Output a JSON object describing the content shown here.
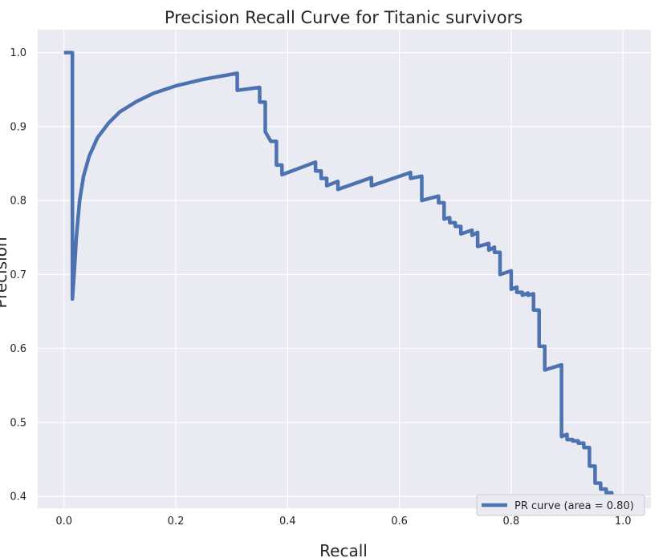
{
  "chart_data": {
    "type": "line",
    "title": "Precision Recall Curve for Titanic survivors",
    "xlabel": "Recall",
    "ylabel": "Precision",
    "xlim": [
      -0.047,
      1.05
    ],
    "ylim": [
      0.384,
      1.031
    ],
    "x_ticks": [
      0.0,
      0.2,
      0.4,
      0.6,
      0.8,
      1.0
    ],
    "x_tick_labels": [
      "0.0",
      "0.2",
      "0.4",
      "0.6",
      "0.8",
      "1.0"
    ],
    "y_ticks": [
      0.4,
      0.5,
      0.6,
      0.7,
      0.8,
      0.9,
      1.0
    ],
    "y_tick_labels": [
      "0.4",
      "0.5",
      "0.6",
      "0.7",
      "0.8",
      "0.9",
      "1.0"
    ],
    "grid": true,
    "legend_position": "lower-right",
    "colors": {
      "plot_background": "#eaeaf2",
      "grid": "#ffffff",
      "line": "#4c72b0",
      "text": "#262626"
    },
    "series": [
      {
        "name": "PR curve (area = 0.80)",
        "x": [
          0.0,
          0.015,
          0.015,
          0.018,
          0.022,
          0.028,
          0.035,
          0.045,
          0.06,
          0.08,
          0.1,
          0.13,
          0.16,
          0.2,
          0.25,
          0.31,
          0.31,
          0.35,
          0.35,
          0.36,
          0.36,
          0.37,
          0.37,
          0.38,
          0.38,
          0.39,
          0.39,
          0.45,
          0.45,
          0.46,
          0.46,
          0.47,
          0.47,
          0.49,
          0.49,
          0.55,
          0.55,
          0.62,
          0.62,
          0.64,
          0.64,
          0.67,
          0.67,
          0.68,
          0.68,
          0.69,
          0.69,
          0.7,
          0.7,
          0.71,
          0.71,
          0.73,
          0.73,
          0.74,
          0.74,
          0.76,
          0.76,
          0.77,
          0.77,
          0.78,
          0.78,
          0.8,
          0.8,
          0.81,
          0.81,
          0.82,
          0.82,
          0.83,
          0.83,
          0.84,
          0.84,
          0.85,
          0.85,
          0.86,
          0.86,
          0.89,
          0.89,
          0.9,
          0.9,
          0.91,
          0.91,
          0.92,
          0.92,
          0.93,
          0.93,
          0.94,
          0.94,
          0.95,
          0.95,
          0.96,
          0.96,
          0.97,
          0.97,
          0.98,
          0.98,
          0.99,
          0.99,
          1.0
        ],
        "y": [
          1.0,
          1.0,
          0.667,
          0.7,
          0.75,
          0.8,
          0.833,
          0.86,
          0.885,
          0.905,
          0.92,
          0.934,
          0.945,
          0.955,
          0.964,
          0.972,
          0.949,
          0.953,
          0.933,
          0.933,
          0.893,
          0.88,
          0.88,
          0.88,
          0.848,
          0.848,
          0.835,
          0.852,
          0.84,
          0.84,
          0.83,
          0.83,
          0.82,
          0.826,
          0.815,
          0.831,
          0.82,
          0.838,
          0.83,
          0.833,
          0.8,
          0.806,
          0.797,
          0.797,
          0.775,
          0.777,
          0.77,
          0.77,
          0.765,
          0.765,
          0.755,
          0.76,
          0.753,
          0.757,
          0.738,
          0.742,
          0.733,
          0.737,
          0.73,
          0.73,
          0.7,
          0.705,
          0.68,
          0.683,
          0.676,
          0.676,
          0.672,
          0.675,
          0.672,
          0.674,
          0.652,
          0.652,
          0.603,
          0.603,
          0.571,
          0.578,
          0.481,
          0.484,
          0.477,
          0.477,
          0.475,
          0.475,
          0.472,
          0.472,
          0.466,
          0.466,
          0.441,
          0.441,
          0.418,
          0.418,
          0.41,
          0.41,
          0.405,
          0.405,
          0.4,
          0.4,
          0.399,
          0.399
        ]
      }
    ]
  }
}
